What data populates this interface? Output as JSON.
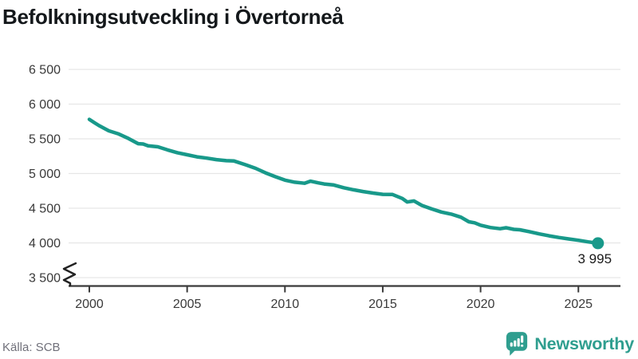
{
  "title": "Befolkningsutveckling i Övertorneå",
  "source": "Källa: SCB",
  "brand": {
    "name": "Newsworthy",
    "color": "#2f9e8f"
  },
  "chart_data": {
    "type": "line",
    "title": "Befolkningsutveckling i Övertorneå",
    "xlabel": "",
    "ylabel": "",
    "line_color": "#18998a",
    "grid": true,
    "axis_break_at_bottom": true,
    "ylim": [
      3500,
      6500
    ],
    "xlim": [
      1999,
      2027
    ],
    "y_ticks": [
      6500,
      6000,
      5500,
      5000,
      4500,
      4000,
      3500
    ],
    "y_tick_labels": [
      "6 500",
      "6 000",
      "5 500",
      "5 000",
      "4 500",
      "4 000",
      "3 500"
    ],
    "x_ticks": [
      2000,
      2005,
      2010,
      2015,
      2020,
      2025
    ],
    "x_tick_labels": [
      "2000",
      "2005",
      "2010",
      "2015",
      "2020",
      "2025"
    ],
    "end_label": "3 995",
    "x": [
      2000,
      2000.25,
      2000.5,
      2001,
      2001.5,
      2002,
      2002.5,
      2002.75,
      2003,
      2003.5,
      2004,
      2004.5,
      2005,
      2005.5,
      2006,
      2006.5,
      2007,
      2007.4,
      2008,
      2008.5,
      2009,
      2009.5,
      2010,
      2010.5,
      2011,
      2011.3,
      2011.7,
      2012,
      2012.5,
      2013,
      2013.5,
      2014,
      2014.5,
      2015,
      2015.5,
      2016,
      2016.25,
      2016.6,
      2017,
      2017.5,
      2018,
      2018.5,
      2019,
      2019.4,
      2019.7,
      2020,
      2020.5,
      2021,
      2021.3,
      2021.7,
      2022,
      2022.5,
      2023,
      2023.5,
      2024,
      2024.5,
      2025,
      2025.5,
      2026
    ],
    "values": [
      5780,
      5735,
      5690,
      5615,
      5570,
      5505,
      5430,
      5425,
      5400,
      5385,
      5340,
      5300,
      5270,
      5240,
      5222,
      5200,
      5185,
      5180,
      5125,
      5075,
      5010,
      4955,
      4905,
      4875,
      4860,
      4890,
      4865,
      4850,
      4835,
      4795,
      4765,
      4740,
      4718,
      4700,
      4698,
      4640,
      4590,
      4605,
      4540,
      4490,
      4445,
      4415,
      4370,
      4305,
      4290,
      4255,
      4222,
      4205,
      4218,
      4195,
      4190,
      4162,
      4130,
      4102,
      4078,
      4058,
      4038,
      4015,
      3995
    ]
  }
}
